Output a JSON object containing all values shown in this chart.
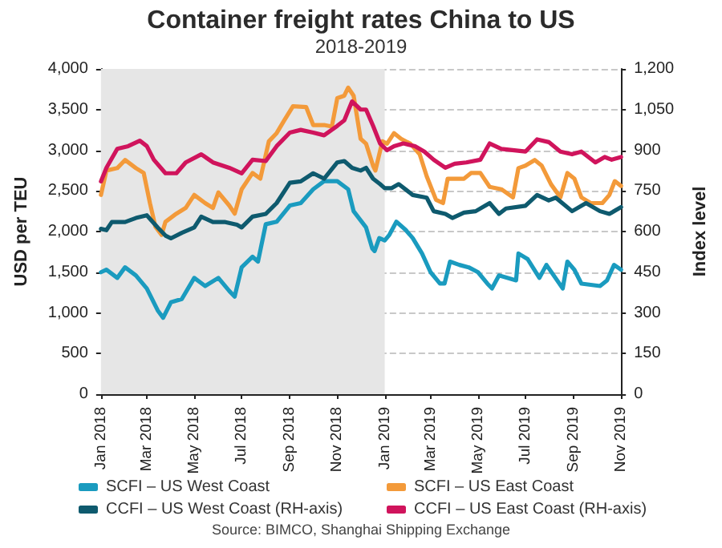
{
  "chart_data": {
    "type": "line",
    "title": "Container freight rates China to US",
    "subtitle": "2018-2019",
    "ylabel": "USD per TEU",
    "y2label": "Index level",
    "xlim": [
      "2018-01-01",
      "2019-11-01"
    ],
    "xticks": [
      {
        "value": "2018-01-01",
        "label": "Jan 2018"
      },
      {
        "value": "2018-03-01",
        "label": "Mar 2018"
      },
      {
        "value": "2018-05-01",
        "label": "May 2018"
      },
      {
        "value": "2018-07-01",
        "label": "Jul 2018"
      },
      {
        "value": "2018-09-01",
        "label": "Sep 2018"
      },
      {
        "value": "2018-11-01",
        "label": "Nov 2018"
      },
      {
        "value": "2019-01-01",
        "label": "Jan 2019"
      },
      {
        "value": "2019-03-01",
        "label": "Mar 2019"
      },
      {
        "value": "2019-05-01",
        "label": "May 2019"
      },
      {
        "value": "2019-07-01",
        "label": "Jul 2019"
      },
      {
        "value": "2019-09-01",
        "label": "Sep 2019"
      },
      {
        "value": "2019-11-01",
        "label": "Nov 2019"
      }
    ],
    "ylim": [
      0,
      4000
    ],
    "yticks": [
      0,
      500,
      {
        "value": 1000,
        "label": "1,000"
      },
      {
        "value": 1500,
        "label": "1,500"
      },
      {
        "value": 2000,
        "label": "2,000"
      },
      {
        "value": 2500,
        "label": "2,500"
      },
      {
        "value": 3000,
        "label": "3,000"
      },
      {
        "value": 3500,
        "label": "3,500"
      },
      {
        "value": 4000,
        "label": "4,000"
      }
    ],
    "y2lim": [
      0,
      1200
    ],
    "y2ticks": [
      0,
      150,
      300,
      450,
      600,
      750,
      900,
      {
        "value": 1050,
        "label": "1,050"
      },
      {
        "value": 1200,
        "label": "1,200"
      }
    ],
    "grid": "y",
    "legend": "bottom",
    "marker": "none",
    "line_style": "solid",
    "bands": [
      {
        "axis": "x",
        "from": "2018-01-01",
        "to": "2019-01-01",
        "color": "#e6e6e6"
      }
    ],
    "annotations": [
      "Source: BIMCO, Shanghai Shipping Exchange"
    ],
    "series": [
      {
        "name": "SCFI – US West Coast",
        "color": "#1a9bbf",
        "x": [
          "2018-01-01",
          "2018-01-08",
          "2018-01-22",
          "2018-02-01",
          "2018-02-15",
          "2018-03-01",
          "2018-03-15",
          "2018-03-22",
          "2018-04-01",
          "2018-04-15",
          "2018-05-01",
          "2018-05-15",
          "2018-06-01",
          "2018-06-15",
          "2018-06-22",
          "2018-07-01",
          "2018-07-15",
          "2018-07-22",
          "2018-08-01",
          "2018-08-15",
          "2018-09-01",
          "2018-09-15",
          "2018-10-01",
          "2018-10-15",
          "2018-11-01",
          "2018-11-15",
          "2018-11-22",
          "2018-12-08",
          "2018-12-16",
          "2018-12-19",
          "2018-12-25",
          "2019-01-01",
          "2019-01-07",
          "2019-01-16",
          "2019-01-28",
          "2019-02-06",
          "2019-02-18",
          "2019-03-01",
          "2019-03-13",
          "2019-03-19",
          "2019-03-26",
          "2019-04-07",
          "2019-04-19",
          "2019-05-01",
          "2019-05-13",
          "2019-05-19",
          "2019-05-28",
          "2019-06-19",
          "2019-06-22",
          "2019-07-04",
          "2019-07-19",
          "2019-07-28",
          "2019-08-18",
          "2019-08-24",
          "2019-09-02",
          "2019-09-11",
          "2019-10-05",
          "2019-10-14",
          "2019-10-23",
          "2019-11-01"
        ],
        "values": [
          1500,
          1530,
          1430,
          1560,
          1460,
          1300,
          1030,
          940,
          1130,
          1170,
          1430,
          1330,
          1430,
          1270,
          1200,
          1560,
          1690,
          1630,
          2090,
          2120,
          2320,
          2350,
          2520,
          2620,
          2620,
          2520,
          2250,
          2050,
          1790,
          1760,
          1920,
          1890,
          1960,
          2120,
          2020,
          1920,
          1730,
          1500,
          1360,
          1360,
          1630,
          1590,
          1560,
          1500,
          1360,
          1300,
          1460,
          1400,
          1730,
          1660,
          1430,
          1590,
          1300,
          1630,
          1530,
          1360,
          1330,
          1400,
          1590,
          1530
        ]
      },
      {
        "name": "SCFI – US East Coast",
        "color": "#f39a3a",
        "x": [
          "2018-01-01",
          "2018-01-08",
          "2018-01-22",
          "2018-02-01",
          "2018-02-15",
          "2018-02-25",
          "2018-03-05",
          "2018-03-12",
          "2018-03-20",
          "2018-03-25",
          "2018-04-08",
          "2018-04-20",
          "2018-05-01",
          "2018-05-15",
          "2018-05-25",
          "2018-06-01",
          "2018-06-15",
          "2018-06-22",
          "2018-07-01",
          "2018-07-15",
          "2018-07-25",
          "2018-08-05",
          "2018-08-15",
          "2018-08-25",
          "2018-09-05",
          "2018-09-22",
          "2018-10-01",
          "2018-10-15",
          "2018-10-25",
          "2018-11-01",
          "2018-11-10",
          "2018-11-15",
          "2018-11-22",
          "2018-12-01",
          "2018-12-08",
          "2018-12-17",
          "2018-12-20",
          "2018-12-29",
          "2019-01-04",
          "2019-01-13",
          "2019-01-22",
          "2019-02-03",
          "2019-02-15",
          "2019-02-24",
          "2019-03-08",
          "2019-03-17",
          "2019-03-23",
          "2019-04-13",
          "2019-04-22",
          "2019-05-04",
          "2019-05-16",
          "2019-05-31",
          "2019-06-15",
          "2019-06-22",
          "2019-07-01",
          "2019-07-13",
          "2019-07-22",
          "2019-08-03",
          "2019-08-15",
          "2019-08-24",
          "2019-09-02",
          "2019-09-11",
          "2019-09-23",
          "2019-10-08",
          "2019-10-17",
          "2019-10-24",
          "2019-11-01"
        ],
        "values": [
          2450,
          2750,
          2780,
          2880,
          2780,
          2720,
          2350,
          2060,
          1960,
          2120,
          2220,
          2290,
          2450,
          2350,
          2290,
          2480,
          2320,
          2220,
          2520,
          2720,
          2650,
          3110,
          3210,
          3370,
          3540,
          3530,
          3310,
          3310,
          3290,
          3640,
          3670,
          3770,
          3670,
          3140,
          3080,
          2810,
          2750,
          3110,
          3080,
          3210,
          3140,
          3080,
          2950,
          2680,
          2390,
          2350,
          2650,
          2650,
          2720,
          2720,
          2550,
          2520,
          2420,
          2780,
          2810,
          2880,
          2810,
          2580,
          2420,
          2720,
          2650,
          2420,
          2350,
          2350,
          2450,
          2620,
          2560
        ]
      },
      {
        "name": "CCFI – US West Coast (RH-axis)",
        "color": "#0e5a6e",
        "axis": "y2",
        "x": [
          "2018-01-01",
          "2018-01-08",
          "2018-01-15",
          "2018-02-01",
          "2018-02-15",
          "2018-03-01",
          "2018-03-15",
          "2018-03-25",
          "2018-04-01",
          "2018-04-15",
          "2018-05-01",
          "2018-05-10",
          "2018-05-25",
          "2018-06-10",
          "2018-06-25",
          "2018-07-01",
          "2018-07-15",
          "2018-08-01",
          "2018-08-15",
          "2018-09-01",
          "2018-09-15",
          "2018-10-01",
          "2018-10-15",
          "2018-11-01",
          "2018-11-10",
          "2018-11-20",
          "2018-12-01",
          "2018-12-08",
          "2018-12-17",
          "2018-12-26",
          "2019-01-01",
          "2019-01-10",
          "2019-01-19",
          "2019-02-06",
          "2019-02-24",
          "2019-03-05",
          "2019-03-20",
          "2019-03-29",
          "2019-04-13",
          "2019-04-28",
          "2019-05-16",
          "2019-05-28",
          "2019-06-06",
          "2019-07-01",
          "2019-07-16",
          "2019-07-31",
          "2019-08-09",
          "2019-08-30",
          "2019-09-17",
          "2019-10-05",
          "2019-10-17",
          "2019-11-01"
        ],
        "values": [
          610,
          605,
          635,
          635,
          650,
          660,
          615,
          585,
          575,
          595,
          615,
          655,
          635,
          635,
          625,
          615,
          655,
          665,
          705,
          780,
          785,
          815,
          795,
          855,
          860,
          835,
          825,
          835,
          795,
          775,
          760,
          760,
          775,
          735,
          725,
          675,
          665,
          650,
          670,
          675,
          705,
          665,
          685,
          695,
          735,
          715,
          725,
          675,
          705,
          675,
          665,
          690
        ]
      },
      {
        "name": "CCFI – US East Coast (RH-axis)",
        "color": "#d0145c",
        "axis": "y2",
        "x": [
          "2018-01-01",
          "2018-01-08",
          "2018-01-22",
          "2018-02-05",
          "2018-02-20",
          "2018-03-01",
          "2018-03-10",
          "2018-03-25",
          "2018-04-08",
          "2018-04-20",
          "2018-05-10",
          "2018-05-25",
          "2018-06-15",
          "2018-07-01",
          "2018-07-15",
          "2018-08-01",
          "2018-08-15",
          "2018-09-01",
          "2018-09-15",
          "2018-10-01",
          "2018-10-15",
          "2018-11-01",
          "2018-11-10",
          "2018-11-20",
          "2018-12-01",
          "2018-12-08",
          "2018-12-17",
          "2018-12-26",
          "2019-01-04",
          "2019-01-13",
          "2019-01-25",
          "2019-02-09",
          "2019-02-21",
          "2019-03-05",
          "2019-03-20",
          "2019-04-01",
          "2019-04-16",
          "2019-05-04",
          "2019-05-16",
          "2019-05-31",
          "2019-07-01",
          "2019-07-16",
          "2019-07-31",
          "2019-08-15",
          "2019-08-30",
          "2019-09-11",
          "2019-09-29",
          "2019-10-11",
          "2019-10-20",
          "2019-11-01"
        ],
        "values": [
          785,
          835,
          905,
          915,
          935,
          915,
          865,
          815,
          815,
          855,
          885,
          855,
          835,
          815,
          865,
          860,
          915,
          965,
          975,
          965,
          955,
          990,
          1010,
          1080,
          1050,
          1050,
          990,
          925,
          900,
          915,
          925,
          915,
          895,
          865,
          835,
          850,
          855,
          865,
          925,
          905,
          895,
          940,
          930,
          895,
          885,
          895,
          855,
          875,
          865,
          875
        ]
      }
    ]
  }
}
